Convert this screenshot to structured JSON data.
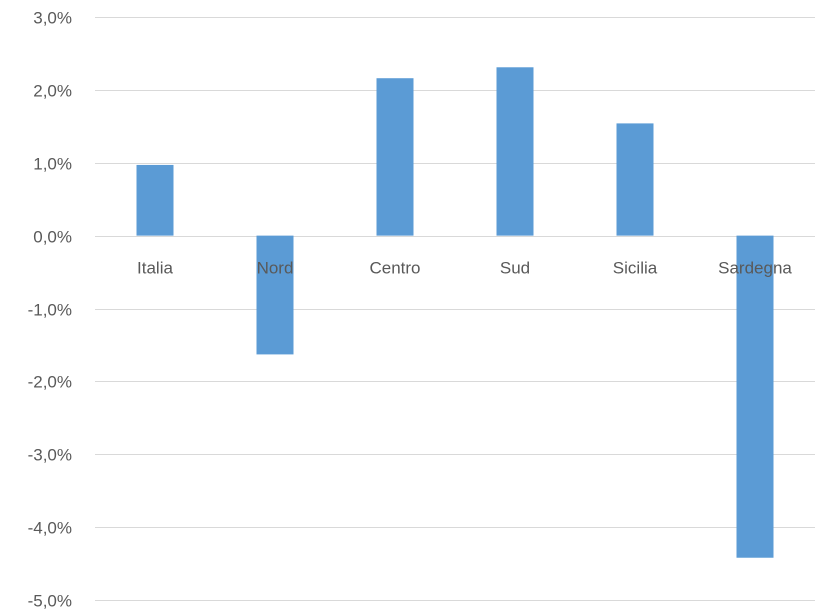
{
  "chart_data": {
    "type": "bar",
    "title": "",
    "xlabel": "",
    "ylabel": "",
    "categories": [
      "Italia",
      "Nord",
      "Centro",
      "Sud",
      "Sicilia",
      "Sardegna"
    ],
    "series": [
      {
        "values": [
          0.97,
          -1.63,
          2.16,
          2.31,
          1.54,
          -4.42
        ]
      }
    ],
    "ylim": [
      -5,
      3
    ],
    "yticks": [
      3,
      2,
      1,
      0,
      -1,
      -2,
      -3,
      -4,
      -5
    ],
    "ytick_labels": [
      "3,0%",
      "2,0%",
      "1,0%",
      "0,0%",
      "-1,0%",
      "-2,0%",
      "-3,0%",
      "-4,0%",
      "-5,0%"
    ],
    "grid": true,
    "legend": "none",
    "bar_color": "#5b9bd5"
  }
}
